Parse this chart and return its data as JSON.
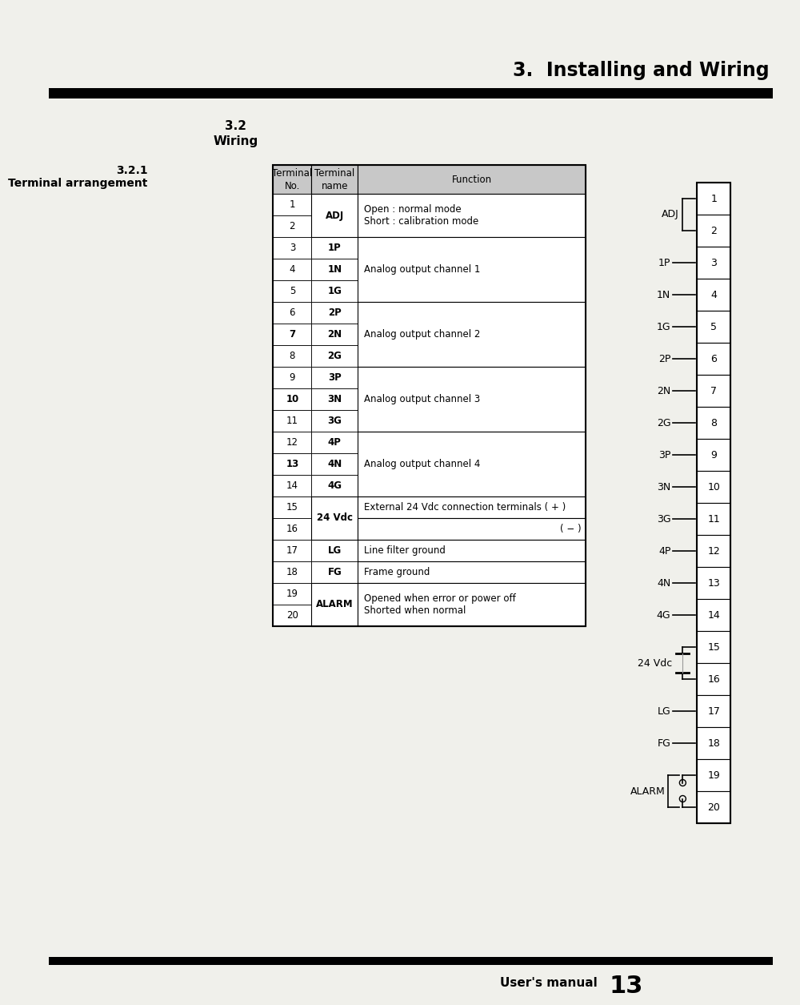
{
  "page_title": "3.  Installing and Wiring",
  "section_title": "3.2\nWiring",
  "subsection_title": "3.2.1\nTerminal arrangement",
  "table_rows": [
    [
      "1",
      "ADJ",
      "Open : normal mode\nShort : calibration mode",
      true
    ],
    [
      "2",
      "",
      "",
      false
    ],
    [
      "3",
      "1P",
      "",
      false
    ],
    [
      "4",
      "1N",
      "Analog output channel 1",
      false
    ],
    [
      "5",
      "1G",
      "",
      false
    ],
    [
      "6",
      "2P",
      "",
      false
    ],
    [
      "7",
      "2N",
      "Analog output channel 2",
      false
    ],
    [
      "8",
      "2G",
      "",
      false
    ],
    [
      "9",
      "3P",
      "",
      false
    ],
    [
      "10",
      "3N",
      "Analog output channel 3",
      false
    ],
    [
      "11",
      "3G",
      "",
      false
    ],
    [
      "12",
      "4P",
      "",
      false
    ],
    [
      "13",
      "4N",
      "Analog output channel 4",
      false
    ],
    [
      "14",
      "4G",
      "",
      false
    ],
    [
      "15",
      "24 Vdc",
      "External 24 Vdc connection terminals ( + )",
      true
    ],
    [
      "16",
      "",
      "( − )",
      false
    ],
    [
      "17",
      "LG",
      "Line filter ground",
      false
    ],
    [
      "18",
      "FG",
      "Frame ground",
      false
    ],
    [
      "19",
      "ALARM",
      "Opened when error or power off\nShorted when normal",
      true
    ],
    [
      "20",
      "",
      "",
      false
    ]
  ],
  "footer_text": "User's manual",
  "footer_page": "13",
  "bg_color": "#f0f0eb",
  "header_gray": "#c8c8c8"
}
